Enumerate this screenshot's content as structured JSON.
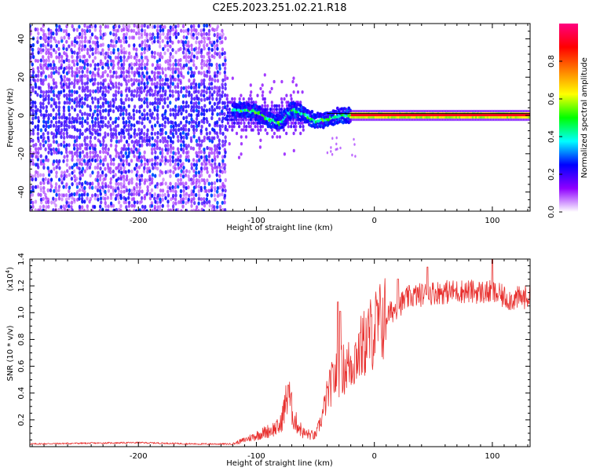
{
  "title": "C2E5.2023.251.02.21.R18",
  "chart_data": [
    {
      "type": "heatmap",
      "name": "spectrogram",
      "xlabel": "Height of straight line (km)",
      "ylabel": "Frequency (Hz)",
      "xlim": [
        -292,
        132
      ],
      "ylim": [
        -50,
        48
      ],
      "xticks": [
        -200,
        -100,
        0,
        100
      ],
      "xtick_labels": [
        "-200",
        "-100",
        "0",
        "100"
      ],
      "yticks": [
        -40,
        -20,
        0,
        20,
        40
      ],
      "ytick_labels": [
        "-40",
        "-20",
        "0",
        "20",
        "40"
      ],
      "carrier_line_hz": 1,
      "features": [
        {
          "label": "broadband noise",
          "x_range": [
            -292,
            -125
          ],
          "freq_spread_hz": 48,
          "amplitude": 0.2
        },
        {
          "label": "noise fringe",
          "x_range": [
            -125,
            -60
          ],
          "freq_spread_hz": 12,
          "amplitude": 0.15
        },
        {
          "label": "signal track",
          "points": [
            [
              -120,
              3
            ],
            [
              -100,
              2
            ],
            [
              -90,
              -2
            ],
            [
              -80,
              -4
            ],
            [
              -70,
              3
            ],
            [
              -60,
              1
            ],
            [
              -50,
              -3
            ],
            [
              -40,
              -2
            ],
            [
              -30,
              0
            ],
            [
              -20,
              0
            ],
            [
              0,
              0
            ],
            [
              130,
              0
            ]
          ],
          "amplitude": 0.45
        },
        {
          "label": "locked carrier",
          "x_range": [
            -20,
            132
          ],
          "freq_hz": 0,
          "amplitude": 0.9
        }
      ],
      "colorbar": {
        "label": "Normalized spectral amplitude",
        "range": [
          0.0,
          1.0
        ],
        "ticks": [
          0.0,
          0.2,
          0.4,
          0.6,
          0.8
        ],
        "tick_labels": [
          "0.0",
          "0.2",
          "0.4",
          "0.6",
          "0.8"
        ],
        "colors": [
          "#ffffff",
          "#8f00ff",
          "#0000ff",
          "#00ffff",
          "#00ff00",
          "#ffff00",
          "#ff8000",
          "#ff0000",
          "#ff0080"
        ]
      }
    },
    {
      "type": "line",
      "name": "snr",
      "xlabel": "Height of straight line (km)",
      "ylabel": "SNR (10 * v/v)",
      "scale_label": "(x10",
      "scale_exponent": "4",
      "scale_close": ")",
      "xlim": [
        -292,
        132
      ],
      "ylim": [
        0,
        1.4
      ],
      "xticks": [
        -200,
        -100,
        0,
        100
      ],
      "xtick_labels": [
        "-200",
        "-100",
        "0",
        "100"
      ],
      "yticks": [
        0.2,
        0.4,
        0.6,
        0.8,
        1.0,
        1.2,
        1.4
      ],
      "ytick_labels": [
        "0.2",
        "0.4",
        "0.6",
        "0.8",
        "1.0",
        "1.2",
        "1.4"
      ],
      "color": "#e8302e",
      "envelope": [
        [
          -292,
          0.02
        ],
        [
          -250,
          0.025
        ],
        [
          -200,
          0.03
        ],
        [
          -150,
          0.02
        ],
        [
          -120,
          0.02
        ],
        [
          -110,
          0.05
        ],
        [
          -95,
          0.1
        ],
        [
          -80,
          0.15
        ],
        [
          -73,
          0.4
        ],
        [
          -68,
          0.2
        ],
        [
          -60,
          0.1
        ],
        [
          -50,
          0.08
        ],
        [
          -45,
          0.2
        ],
        [
          -40,
          0.38
        ],
        [
          -35,
          0.5
        ],
        [
          -30,
          0.55
        ],
        [
          -20,
          0.62
        ],
        [
          -10,
          0.75
        ],
        [
          0,
          0.88
        ],
        [
          10,
          0.97
        ],
        [
          20,
          1.05
        ],
        [
          30,
          1.12
        ],
        [
          50,
          1.15
        ],
        [
          75,
          1.16
        ],
        [
          100,
          1.15
        ],
        [
          115,
          1.1
        ],
        [
          132,
          1.12
        ]
      ],
      "peaks": [
        [
          -73,
          0.46
        ],
        [
          -31,
          1.08
        ],
        [
          -29,
          1.01
        ],
        [
          -12,
          0.85
        ],
        [
          20,
          1.25
        ],
        [
          45,
          1.34
        ],
        [
          100,
          1.42
        ]
      ]
    }
  ]
}
